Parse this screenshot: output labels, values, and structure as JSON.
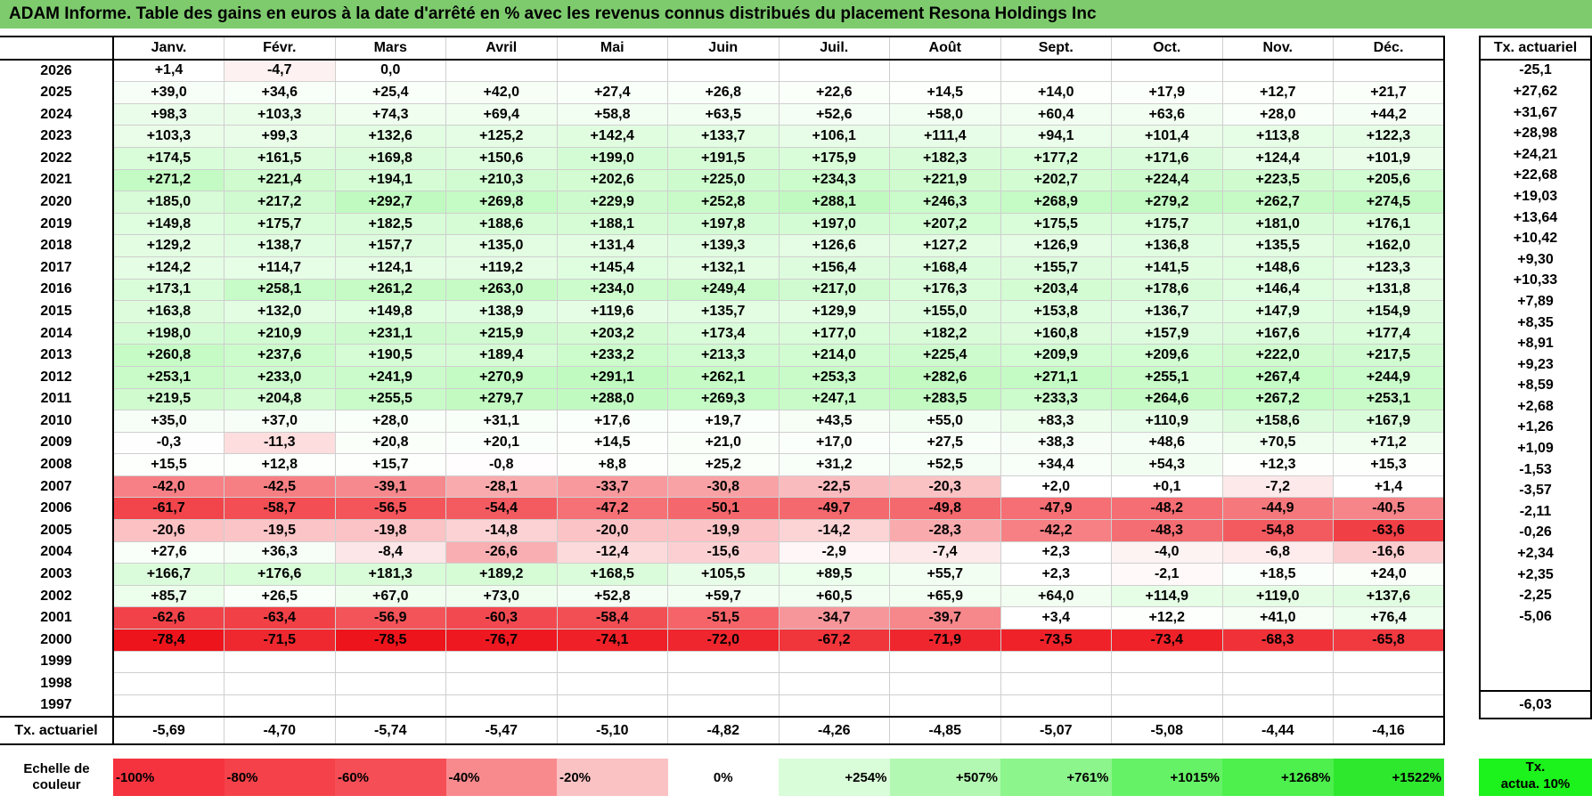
{
  "title": "ADAM Informe. Table des gains en euros à la date d'arrêté en % avec les revenus connus distribués du placement Resona Holdings Inc",
  "months": [
    "Janv.",
    "Févr.",
    "Mars",
    "Avril",
    "Mai",
    "Juin",
    "Juil.",
    "Août",
    "Sept.",
    "Oct.",
    "Nov.",
    "Déc."
  ],
  "side_header": "Tx. actuariel",
  "rows": [
    {
      "year": "2026",
      "values": [
        "+1,4",
        "-4,7",
        "0,0",
        "",
        "",
        "",
        "",
        "",
        "",
        "",
        "",
        ""
      ],
      "tx": "-25,1"
    },
    {
      "year": "2025",
      "values": [
        "+39,0",
        "+34,6",
        "+25,4",
        "+42,0",
        "+27,4",
        "+26,8",
        "+22,6",
        "+14,5",
        "+14,0",
        "+17,9",
        "+12,7",
        "+21,7"
      ],
      "tx": "+27,62"
    },
    {
      "year": "2024",
      "values": [
        "+98,3",
        "+103,3",
        "+74,3",
        "+69,4",
        "+58,8",
        "+63,5",
        "+52,6",
        "+58,0",
        "+60,4",
        "+63,6",
        "+28,0",
        "+44,2"
      ],
      "tx": "+31,67"
    },
    {
      "year": "2023",
      "values": [
        "+103,3",
        "+99,3",
        "+132,6",
        "+125,2",
        "+142,4",
        "+133,7",
        "+106,1",
        "+111,4",
        "+94,1",
        "+101,4",
        "+113,8",
        "+122,3"
      ],
      "tx": "+28,98"
    },
    {
      "year": "2022",
      "values": [
        "+174,5",
        "+161,5",
        "+169,8",
        "+150,6",
        "+199,0",
        "+191,5",
        "+175,9",
        "+182,3",
        "+177,2",
        "+171,6",
        "+124,4",
        "+101,9"
      ],
      "tx": "+24,21"
    },
    {
      "year": "2021",
      "values": [
        "+271,2",
        "+221,4",
        "+194,1",
        "+210,3",
        "+202,6",
        "+225,0",
        "+234,3",
        "+221,9",
        "+202,7",
        "+224,4",
        "+223,5",
        "+205,6"
      ],
      "tx": "+22,68"
    },
    {
      "year": "2020",
      "values": [
        "+185,0",
        "+217,2",
        "+292,7",
        "+269,8",
        "+229,9",
        "+252,8",
        "+288,1",
        "+246,3",
        "+268,9",
        "+279,2",
        "+262,7",
        "+274,5"
      ],
      "tx": "+19,03"
    },
    {
      "year": "2019",
      "values": [
        "+149,8",
        "+175,7",
        "+182,5",
        "+188,6",
        "+188,1",
        "+197,8",
        "+197,0",
        "+207,2",
        "+175,5",
        "+175,7",
        "+181,0",
        "+176,1"
      ],
      "tx": "+13,64"
    },
    {
      "year": "2018",
      "values": [
        "+129,2",
        "+138,7",
        "+157,7",
        "+135,0",
        "+131,4",
        "+139,3",
        "+126,6",
        "+127,2",
        "+126,9",
        "+136,8",
        "+135,5",
        "+162,0"
      ],
      "tx": "+10,42"
    },
    {
      "year": "2017",
      "values": [
        "+124,2",
        "+114,7",
        "+124,1",
        "+119,2",
        "+145,4",
        "+132,1",
        "+156,4",
        "+168,4",
        "+155,7",
        "+141,5",
        "+148,6",
        "+123,3"
      ],
      "tx": "+9,30"
    },
    {
      "year": "2016",
      "values": [
        "+173,1",
        "+258,1",
        "+261,2",
        "+263,0",
        "+234,0",
        "+249,4",
        "+217,0",
        "+176,3",
        "+203,4",
        "+178,6",
        "+146,4",
        "+131,8"
      ],
      "tx": "+10,33"
    },
    {
      "year": "2015",
      "values": [
        "+163,8",
        "+132,0",
        "+149,8",
        "+138,9",
        "+119,6",
        "+135,7",
        "+129,9",
        "+155,0",
        "+153,8",
        "+136,7",
        "+147,9",
        "+154,9"
      ],
      "tx": "+7,89"
    },
    {
      "year": "2014",
      "values": [
        "+198,0",
        "+210,9",
        "+231,1",
        "+215,9",
        "+203,2",
        "+173,4",
        "+177,0",
        "+182,2",
        "+160,8",
        "+157,9",
        "+167,6",
        "+177,4"
      ],
      "tx": "+8,35"
    },
    {
      "year": "2013",
      "values": [
        "+260,8",
        "+237,6",
        "+190,5",
        "+189,4",
        "+233,2",
        "+213,3",
        "+214,0",
        "+225,4",
        "+209,9",
        "+209,6",
        "+222,0",
        "+217,5"
      ],
      "tx": "+8,91"
    },
    {
      "year": "2012",
      "values": [
        "+253,1",
        "+233,0",
        "+241,9",
        "+270,9",
        "+291,1",
        "+262,1",
        "+253,3",
        "+282,6",
        "+271,1",
        "+255,1",
        "+267,4",
        "+244,9"
      ],
      "tx": "+9,23"
    },
    {
      "year": "2011",
      "values": [
        "+219,5",
        "+204,8",
        "+255,5",
        "+279,7",
        "+288,0",
        "+269,3",
        "+247,1",
        "+283,5",
        "+233,3",
        "+264,6",
        "+267,2",
        "+253,1"
      ],
      "tx": "+8,59"
    },
    {
      "year": "2010",
      "values": [
        "+35,0",
        "+37,0",
        "+28,0",
        "+31,1",
        "+17,6",
        "+19,7",
        "+43,5",
        "+55,0",
        "+83,3",
        "+110,9",
        "+158,6",
        "+167,9"
      ],
      "tx": "+2,68"
    },
    {
      "year": "2009",
      "values": [
        "-0,3",
        "-11,3",
        "+20,8",
        "+20,1",
        "+14,5",
        "+21,0",
        "+17,0",
        "+27,5",
        "+38,3",
        "+48,6",
        "+70,5",
        "+71,2"
      ],
      "tx": "+1,26"
    },
    {
      "year": "2008",
      "values": [
        "+15,5",
        "+12,8",
        "+15,7",
        "-0,8",
        "+8,8",
        "+25,2",
        "+31,2",
        "+52,5",
        "+34,4",
        "+54,3",
        "+12,3",
        "+15,3"
      ],
      "tx": "+1,09"
    },
    {
      "year": "2007",
      "values": [
        "-42,0",
        "-42,5",
        "-39,1",
        "-28,1",
        "-33,7",
        "-30,8",
        "-22,5",
        "-20,3",
        "+2,0",
        "+0,1",
        "-7,2",
        "+1,4"
      ],
      "tx": "-1,53"
    },
    {
      "year": "2006",
      "values": [
        "-61,7",
        "-58,7",
        "-56,5",
        "-54,4",
        "-47,2",
        "-50,1",
        "-49,7",
        "-49,8",
        "-47,9",
        "-48,2",
        "-44,9",
        "-40,5"
      ],
      "tx": "-3,57"
    },
    {
      "year": "2005",
      "values": [
        "-20,6",
        "-19,5",
        "-19,8",
        "-14,8",
        "-20,0",
        "-19,9",
        "-14,2",
        "-28,3",
        "-42,2",
        "-48,3",
        "-54,8",
        "-63,6"
      ],
      "tx": "-2,11"
    },
    {
      "year": "2004",
      "values": [
        "+27,6",
        "+36,3",
        "-8,4",
        "-26,6",
        "-12,4",
        "-15,6",
        "-2,9",
        "-7,4",
        "+2,3",
        "-4,0",
        "-6,8",
        "-16,6"
      ],
      "tx": "-0,26"
    },
    {
      "year": "2003",
      "values": [
        "+166,7",
        "+176,6",
        "+181,3",
        "+189,2",
        "+168,5",
        "+105,5",
        "+89,5",
        "+55,7",
        "+2,3",
        "-2,1",
        "+18,5",
        "+24,0"
      ],
      "tx": "+2,34"
    },
    {
      "year": "2002",
      "values": [
        "+85,7",
        "+26,5",
        "+67,0",
        "+73,0",
        "+52,8",
        "+59,7",
        "+60,5",
        "+65,9",
        "+64,0",
        "+114,9",
        "+119,0",
        "+137,6"
      ],
      "tx": "+2,35"
    },
    {
      "year": "2001",
      "values": [
        "-62,6",
        "-63,4",
        "-56,9",
        "-60,3",
        "-58,4",
        "-51,5",
        "-34,7",
        "-39,7",
        "+3,4",
        "+12,2",
        "+41,0",
        "+76,4"
      ],
      "tx": "-2,25"
    },
    {
      "year": "2000",
      "values": [
        "-78,4",
        "-71,5",
        "-78,5",
        "-76,7",
        "-74,1",
        "-72,0",
        "-67,2",
        "-71,9",
        "-73,5",
        "-73,4",
        "-68,3",
        "-65,8"
      ],
      "tx": "-5,06"
    },
    {
      "year": "1999",
      "values": [
        "",
        "",
        "",
        "",
        "",
        "",
        "",
        "",
        "",
        "",
        "",
        ""
      ],
      "tx": ""
    },
    {
      "year": "1998",
      "values": [
        "",
        "",
        "",
        "",
        "",
        "",
        "",
        "",
        "",
        "",
        "",
        ""
      ],
      "tx": ""
    },
    {
      "year": "1997",
      "values": [
        "",
        "",
        "",
        "",
        "",
        "",
        "",
        "",
        "",
        "",
        "",
        ""
      ],
      "tx": ""
    }
  ],
  "tx_row": {
    "label": "Tx. actuariel",
    "values": [
      "-5,69",
      "-4,70",
      "-5,74",
      "-5,47",
      "-5,10",
      "-4,82",
      "-4,26",
      "-4,85",
      "-5,07",
      "-5,08",
      "-4,44",
      "-4,16"
    ],
    "total": "-6,03"
  },
  "scale": {
    "label_line1": "Echelle de",
    "label_line2": "couleur",
    "cells": [
      {
        "text": "-100%",
        "color": "#f5333e"
      },
      {
        "text": "-80%",
        "color": "#f5424a"
      },
      {
        "text": "-60%",
        "color": "#f64e56"
      },
      {
        "text": "-40%",
        "color": "#f88a8e"
      },
      {
        "text": "-20%",
        "color": "#fbc2c4"
      },
      {
        "text": "0%",
        "color": "#ffffff"
      },
      {
        "text": "+254%",
        "color": "#d9fcd9"
      },
      {
        "text": "+507%",
        "color": "#b2f8b2"
      },
      {
        "text": "+761%",
        "color": "#8cf58c"
      },
      {
        "text": "+1015%",
        "color": "#66f266"
      },
      {
        "text": "+1268%",
        "color": "#4df04d"
      },
      {
        "text": "+1522%",
        "color": "#2ee82e"
      }
    ],
    "side_line1": "Tx.",
    "side_line2": "actua. 10%",
    "side_color": "#1cf21c"
  }
}
